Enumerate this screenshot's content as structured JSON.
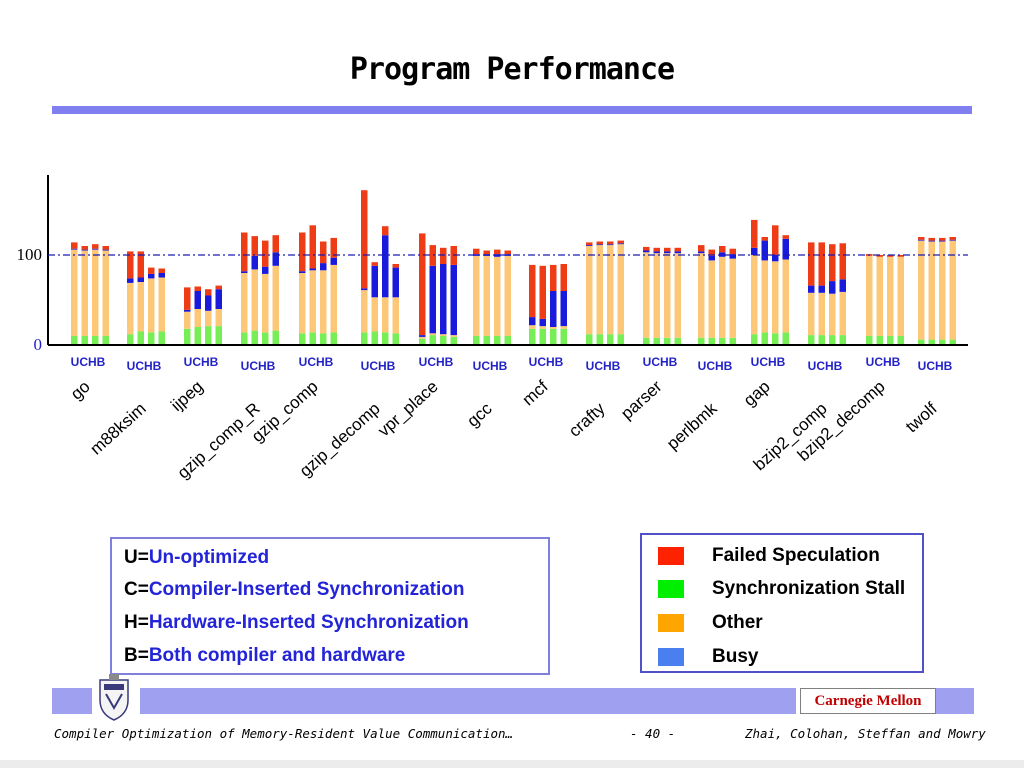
{
  "slide": {
    "title": "Program Performance",
    "footer_left": "Compiler Optimization of Memory-Resident Value Communication…",
    "page_number": "- 40 -",
    "footer_right": "Zhai, Colohan, Steffan and Mowry",
    "institution": "Carnegie Mellon"
  },
  "key": {
    "items": [
      {
        "letter": "U=",
        "text": "Un-optimized"
      },
      {
        "letter": "C=",
        "text": "Compiler-Inserted Synchronization"
      },
      {
        "letter": "H=",
        "text": "Hardware-Inserted Synchronization"
      },
      {
        "letter": "B=",
        "text": "Both compiler and hardware"
      }
    ]
  },
  "legend": {
    "items": [
      {
        "label": "Failed Speculation",
        "color": "#ff2200"
      },
      {
        "label": "Synchronization Stall",
        "color": "#00ee00"
      },
      {
        "label": "Other",
        "color": "#ffa500"
      },
      {
        "label": "Busy",
        "color": "#4a7ff0"
      }
    ]
  },
  "chart_data": {
    "type": "bar",
    "stacked": true,
    "bars_per_group": [
      "U",
      "C",
      "H",
      "B"
    ],
    "group_tag": "UCHB",
    "yticks": [
      0,
      100
    ],
    "ylim": [
      0,
      180
    ],
    "reference_line": 100,
    "series_colors": {
      "sync": "#77ee55",
      "other": "#fcc878",
      "busy": "#1a1adc",
      "fail": "#ee3c16"
    },
    "groups": [
      {
        "name": "go",
        "bars": [
          {
            "sync": 10,
            "other": 96,
            "busy": 1,
            "fail": 7
          },
          {
            "sync": 10,
            "other": 95,
            "busy": 1,
            "fail": 4
          },
          {
            "sync": 10,
            "other": 96,
            "busy": 1,
            "fail": 5
          },
          {
            "sync": 10,
            "other": 95,
            "busy": 1,
            "fail": 4
          }
        ]
      },
      {
        "name": "m88ksim",
        "bars": [
          {
            "sync": 12,
            "other": 57,
            "busy": 5,
            "fail": 30
          },
          {
            "sync": 15,
            "other": 55,
            "busy": 5,
            "fail": 29
          },
          {
            "sync": 14,
            "other": 60,
            "busy": 5,
            "fail": 7
          },
          {
            "sync": 15,
            "other": 60,
            "busy": 5,
            "fail": 5
          }
        ]
      },
      {
        "name": "ijpeg",
        "bars": [
          {
            "sync": 18,
            "other": 19,
            "busy": 2,
            "fail": 25
          },
          {
            "sync": 20,
            "other": 20,
            "busy": 20,
            "fail": 5
          },
          {
            "sync": 21,
            "other": 17,
            "busy": 17,
            "fail": 7
          },
          {
            "sync": 21,
            "other": 19,
            "busy": 22,
            "fail": 4
          }
        ]
      },
      {
        "name": "gzip_comp_R",
        "bars": [
          {
            "sync": 14,
            "other": 66,
            "busy": 2,
            "fail": 43
          },
          {
            "sync": 16,
            "other": 68,
            "busy": 15,
            "fail": 22
          },
          {
            "sync": 14,
            "other": 65,
            "busy": 8,
            "fail": 29
          },
          {
            "sync": 16,
            "other": 72,
            "busy": 15,
            "fail": 19
          }
        ]
      },
      {
        "name": "gzip_comp",
        "bars": [
          {
            "sync": 13,
            "other": 67,
            "busy": 2,
            "fail": 43
          },
          {
            "sync": 14,
            "other": 69,
            "busy": 2,
            "fail": 48
          },
          {
            "sync": 13,
            "other": 70,
            "busy": 8,
            "fail": 24
          },
          {
            "sync": 14,
            "other": 75,
            "busy": 8,
            "fail": 22
          }
        ]
      },
      {
        "name": "gzip_decomp",
        "bars": [
          {
            "sync": 14,
            "other": 47,
            "busy": 2,
            "fail": 109
          },
          {
            "sync": 15,
            "other": 38,
            "busy": 35,
            "fail": 4
          },
          {
            "sync": 14,
            "other": 39,
            "busy": 69,
            "fail": 10
          },
          {
            "sync": 13,
            "other": 40,
            "busy": 33,
            "fail": 4
          }
        ]
      },
      {
        "name": "vpr_place",
        "bars": [
          {
            "sync": 7,
            "other": 2,
            "busy": 2,
            "fail": 113
          },
          {
            "sync": 11,
            "other": 2,
            "busy": 75,
            "fail": 23
          },
          {
            "sync": 10,
            "other": 2,
            "busy": 78,
            "fail": 18
          },
          {
            "sync": 9,
            "other": 2,
            "busy": 78,
            "fail": 21
          }
        ]
      },
      {
        "name": "gcc",
        "bars": [
          {
            "sync": 10,
            "other": 89,
            "busy": 2,
            "fail": 6
          },
          {
            "sync": 10,
            "other": 89,
            "busy": 2,
            "fail": 4
          },
          {
            "sync": 10,
            "other": 88,
            "busy": 3,
            "fail": 5
          },
          {
            "sync": 10,
            "other": 89,
            "busy": 2,
            "fail": 4
          }
        ]
      },
      {
        "name": "mcf",
        "bars": [
          {
            "sync": 18,
            "other": 4,
            "busy": 9,
            "fail": 58
          },
          {
            "sync": 18,
            "other": 3,
            "busy": 8,
            "fail": 59
          },
          {
            "sync": 18,
            "other": 2,
            "busy": 40,
            "fail": 29
          },
          {
            "sync": 18,
            "other": 3,
            "busy": 39,
            "fail": 30
          }
        ]
      },
      {
        "name": "crafty",
        "bars": [
          {
            "sync": 12,
            "other": 98,
            "busy": 1,
            "fail": 3
          },
          {
            "sync": 12,
            "other": 99,
            "busy": 1,
            "fail": 3
          },
          {
            "sync": 12,
            "other": 99,
            "busy": 1,
            "fail": 3
          },
          {
            "sync": 12,
            "other": 100,
            "busy": 1,
            "fail": 3
          }
        ]
      },
      {
        "name": "parser",
        "bars": [
          {
            "sync": 8,
            "other": 95,
            "busy": 2,
            "fail": 4
          },
          {
            "sync": 8,
            "other": 94,
            "busy": 2,
            "fail": 4
          },
          {
            "sync": 8,
            "other": 94,
            "busy": 2,
            "fail": 4
          },
          {
            "sync": 8,
            "other": 94,
            "busy": 2,
            "fail": 4
          }
        ]
      },
      {
        "name": "perlbmk",
        "bars": [
          {
            "sync": 8,
            "other": 94,
            "busy": 2,
            "fail": 7
          },
          {
            "sync": 8,
            "other": 86,
            "busy": 5,
            "fail": 7
          },
          {
            "sync": 8,
            "other": 90,
            "busy": 5,
            "fail": 7
          },
          {
            "sync": 8,
            "other": 88,
            "busy": 5,
            "fail": 6
          }
        ]
      },
      {
        "name": "gap",
        "bars": [
          {
            "sync": 12,
            "other": 88,
            "busy": 8,
            "fail": 31
          },
          {
            "sync": 14,
            "other": 80,
            "busy": 22,
            "fail": 4
          },
          {
            "sync": 13,
            "other": 80,
            "busy": 7,
            "fail": 33
          },
          {
            "sync": 14,
            "other": 81,
            "busy": 23,
            "fail": 4
          }
        ]
      },
      {
        "name": "bzip2_comp",
        "bars": [
          {
            "sync": 11,
            "other": 47,
            "busy": 8,
            "fail": 48
          },
          {
            "sync": 11,
            "other": 47,
            "busy": 8,
            "fail": 48
          },
          {
            "sync": 11,
            "other": 46,
            "busy": 14,
            "fail": 41
          },
          {
            "sync": 11,
            "other": 48,
            "busy": 14,
            "fail": 40
          }
        ]
      },
      {
        "name": "bzip2_decomp",
        "bars": [
          {
            "sync": 10,
            "other": 89,
            "busy": 0,
            "fail": 2
          },
          {
            "sync": 10,
            "other": 88,
            "busy": 0,
            "fail": 2
          },
          {
            "sync": 10,
            "other": 88,
            "busy": 0,
            "fail": 2
          },
          {
            "sync": 10,
            "other": 88,
            "busy": 0,
            "fail": 2
          }
        ]
      },
      {
        "name": "twolf",
        "bars": [
          {
            "sync": 6,
            "other": 110,
            "busy": 1,
            "fail": 3
          },
          {
            "sync": 6,
            "other": 109,
            "busy": 1,
            "fail": 3
          },
          {
            "sync": 6,
            "other": 109,
            "busy": 1,
            "fail": 3
          },
          {
            "sync": 6,
            "other": 110,
            "busy": 1,
            "fail": 3
          }
        ]
      }
    ]
  }
}
